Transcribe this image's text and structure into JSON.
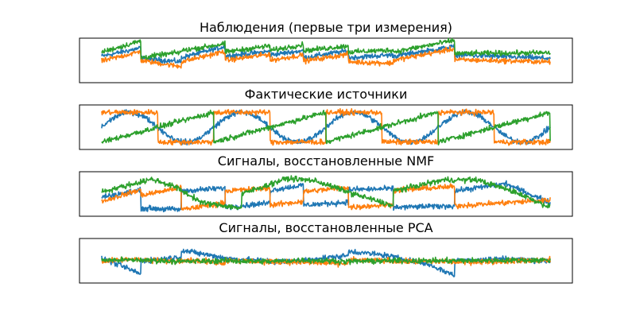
{
  "chart_data": [
    {
      "type": "line",
      "title": "Наблюдения (первые три измерения)",
      "axis": "off",
      "n_samples": 2000,
      "x_range": [
        0,
        8
      ],
      "ylim": [
        -1.7,
        1.5
      ],
      "series": [
        {
          "color": "#1f77b4",
          "shape": "mix",
          "keypoints": [
            [
              0.0,
              0.2
            ],
            [
              0.7,
              0.8
            ],
            [
              0.7,
              0.05
            ],
            [
              1.42,
              -0.2
            ],
            [
              1.42,
              0.1
            ],
            [
              2.2,
              0.9
            ],
            [
              2.2,
              0.2
            ],
            [
              3.0,
              0.55
            ],
            [
              3.0,
              0.3
            ],
            [
              3.6,
              0.6
            ],
            [
              3.6,
              0.1
            ],
            [
              4.4,
              0.6
            ],
            [
              4.4,
              0.1
            ],
            [
              5.2,
              0.3
            ],
            [
              5.2,
              0.2
            ],
            [
              6.3,
              0.9
            ],
            [
              6.3,
              0.3
            ],
            [
              8.0,
              0.05
            ]
          ]
        },
        {
          "color": "#ff7f0e",
          "shape": "mix",
          "keypoints": [
            [
              0.0,
              -0.15
            ],
            [
              0.7,
              0.55
            ],
            [
              0.7,
              -0.1
            ],
            [
              1.42,
              -0.55
            ],
            [
              1.42,
              -0.2
            ],
            [
              2.2,
              0.55
            ],
            [
              2.2,
              -0.1
            ],
            [
              3.0,
              0.35
            ],
            [
              3.0,
              -0.1
            ],
            [
              3.6,
              0.3
            ],
            [
              3.6,
              -0.15
            ],
            [
              4.4,
              0.35
            ],
            [
              4.4,
              -0.2
            ],
            [
              5.2,
              -0.3
            ],
            [
              5.2,
              -0.1
            ],
            [
              6.3,
              0.75
            ],
            [
              6.3,
              -0.05
            ],
            [
              8.0,
              -0.2
            ]
          ]
        },
        {
          "color": "#2ca02c",
          "shape": "mix",
          "keypoints": [
            [
              0.0,
              0.5
            ],
            [
              0.7,
              1.3
            ],
            [
              0.7,
              0.1
            ],
            [
              1.42,
              0.5
            ],
            [
              1.42,
              0.6
            ],
            [
              2.2,
              1.1
            ],
            [
              2.2,
              0.5
            ],
            [
              3.0,
              0.95
            ],
            [
              3.0,
              0.6
            ],
            [
              3.6,
              1.05
            ],
            [
              3.6,
              0.6
            ],
            [
              4.4,
              0.95
            ],
            [
              4.4,
              0.5
            ],
            [
              5.2,
              0.65
            ],
            [
              5.2,
              0.5
            ],
            [
              6.3,
              1.35
            ],
            [
              6.3,
              0.4
            ],
            [
              8.0,
              0.45
            ]
          ]
        }
      ]
    },
    {
      "type": "line",
      "title": "Фактические источники",
      "axis": "off",
      "n_samples": 2000,
      "x_range": [
        0,
        8
      ],
      "ylim": [
        -1.5,
        1.5
      ],
      "series": [
        {
          "color": "#1f77b4",
          "shape": "sin",
          "freq": 0.5,
          "amplitude": 1.0,
          "phase": 0.0
        },
        {
          "color": "#ff7f0e",
          "shape": "square",
          "freq": 0.5,
          "amplitude": 1.0,
          "phase": 0.0
        },
        {
          "color": "#2ca02c",
          "shape": "sawtooth",
          "freq": 0.5,
          "amplitude": 1.0,
          "phase": 0.0
        }
      ]
    },
    {
      "type": "line",
      "title": "Сигналы, восстановленные NMF",
      "axis": "off",
      "n_samples": 2000,
      "x_range": [
        0,
        8
      ],
      "ylim": [
        -1.5,
        1.5
      ],
      "series": [
        {
          "color": "#1f77b4",
          "shape": "mix",
          "keypoints": [
            [
              0.0,
              -0.2
            ],
            [
              0.7,
              0.25
            ],
            [
              0.7,
              -0.95
            ],
            [
              1.42,
              -1.05
            ],
            [
              1.42,
              0.2
            ],
            [
              2.2,
              0.4
            ],
            [
              2.2,
              -0.9
            ],
            [
              3.0,
              -0.6
            ],
            [
              3.0,
              0.25
            ],
            [
              3.6,
              0.6
            ],
            [
              3.6,
              -0.75
            ],
            [
              4.4,
              -0.55
            ],
            [
              4.4,
              0.3
            ],
            [
              5.2,
              0.35
            ],
            [
              5.2,
              -0.9
            ],
            [
              6.3,
              -0.8
            ],
            [
              6.3,
              0.2
            ],
            [
              7.2,
              0.7
            ],
            [
              8.0,
              -0.6
            ]
          ]
        },
        {
          "color": "#ff7f0e",
          "shape": "mix",
          "keypoints": [
            [
              0.0,
              -0.5
            ],
            [
              0.7,
              0.3
            ],
            [
              0.7,
              -0.1
            ],
            [
              1.42,
              0.45
            ],
            [
              1.42,
              -1.05
            ],
            [
              2.2,
              -0.6
            ],
            [
              2.2,
              0.2
            ],
            [
              3.0,
              0.4
            ],
            [
              3.0,
              -0.75
            ],
            [
              3.6,
              -0.5
            ],
            [
              3.6,
              0.15
            ],
            [
              4.4,
              0.45
            ],
            [
              4.4,
              -0.9
            ],
            [
              5.2,
              -0.7
            ],
            [
              5.2,
              0.25
            ],
            [
              6.3,
              0.5
            ],
            [
              6.3,
              -0.8
            ],
            [
              8.0,
              -0.4
            ]
          ]
        },
        {
          "color": "#2ca02c",
          "shape": "mix",
          "keypoints": [
            [
              0.0,
              0.15
            ],
            [
              0.9,
              1.0
            ],
            [
              1.3,
              0.5
            ],
            [
              1.8,
              -0.6
            ],
            [
              2.5,
              -0.95
            ],
            [
              2.5,
              0.0
            ],
            [
              3.3,
              1.05
            ],
            [
              3.8,
              0.9
            ],
            [
              4.5,
              0.0
            ],
            [
              5.2,
              -0.8
            ],
            [
              5.2,
              0.2
            ],
            [
              6.1,
              0.95
            ],
            [
              6.7,
              0.95
            ],
            [
              7.4,
              0.1
            ],
            [
              8.0,
              -0.9
            ]
          ]
        }
      ]
    },
    {
      "type": "line",
      "title": "Сигналы, восстановленные PCA",
      "axis": "off",
      "n_samples": 2000,
      "x_range": [
        0,
        8
      ],
      "ylim": [
        -1.5,
        1.5
      ],
      "series": [
        {
          "color": "#1f77b4",
          "shape": "mix",
          "keypoints": [
            [
              0.0,
              0.15
            ],
            [
              0.1,
              0.05
            ],
            [
              0.7,
              -0.9
            ],
            [
              0.7,
              0.0
            ],
            [
              1.42,
              0.25
            ],
            [
              1.42,
              0.7
            ],
            [
              2.2,
              0.2
            ],
            [
              2.2,
              0.15
            ],
            [
              3.0,
              0.0
            ],
            [
              3.0,
              -0.05
            ],
            [
              3.6,
              0.0
            ],
            [
              3.6,
              0.05
            ],
            [
              4.4,
              0.35
            ],
            [
              4.4,
              0.65
            ],
            [
              5.2,
              0.3
            ],
            [
              5.2,
              0.25
            ],
            [
              5.8,
              -0.2
            ],
            [
              6.3,
              -1.0
            ],
            [
              6.3,
              0.0
            ],
            [
              7.2,
              0.15
            ],
            [
              8.0,
              -0.05
            ]
          ]
        },
        {
          "color": "#ff7f0e",
          "shape": "mix",
          "keypoints": [
            [
              0.0,
              -0.05
            ],
            [
              0.7,
              0.15
            ],
            [
              0.7,
              0.05
            ],
            [
              1.42,
              -0.05
            ],
            [
              1.42,
              0.1
            ],
            [
              2.2,
              -0.15
            ],
            [
              2.2,
              0.05
            ],
            [
              3.0,
              -0.1
            ],
            [
              3.0,
              -0.05
            ],
            [
              4.4,
              -0.2
            ],
            [
              4.4,
              0.05
            ],
            [
              5.2,
              0.0
            ],
            [
              5.2,
              -0.05
            ],
            [
              6.3,
              -0.05
            ],
            [
              6.3,
              -0.1
            ],
            [
              8.0,
              0.05
            ]
          ]
        },
        {
          "color": "#2ca02c",
          "shape": "mix",
          "keypoints": [
            [
              0.0,
              0.05
            ],
            [
              0.7,
              0.05
            ],
            [
              1.42,
              -0.05
            ],
            [
              2.2,
              0.0
            ],
            [
              3.0,
              -0.05
            ],
            [
              3.6,
              0.05
            ],
            [
              4.4,
              -0.05
            ],
            [
              5.2,
              0.0
            ],
            [
              6.3,
              0.0
            ],
            [
              8.0,
              0.05
            ]
          ]
        }
      ]
    }
  ]
}
